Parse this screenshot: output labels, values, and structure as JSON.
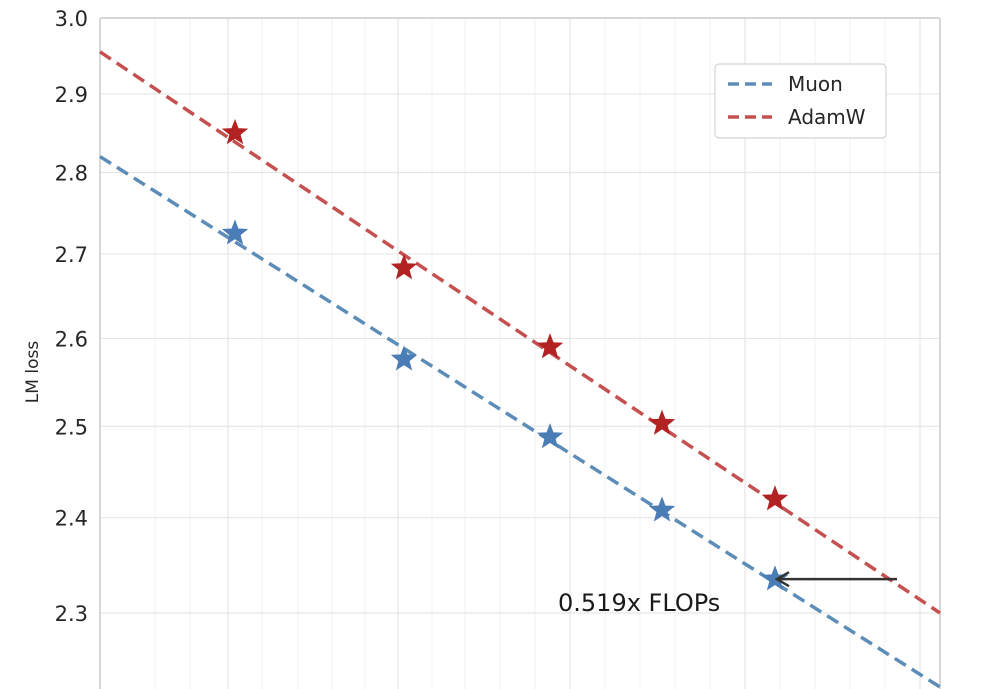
{
  "chart_data": {
    "type": "line",
    "title": "",
    "xlabel": "",
    "ylabel": "LM loss",
    "ylim": [
      2.22,
      3.0
    ],
    "y_scale": "log",
    "yticks": [
      2.3,
      2.4,
      2.5,
      2.6,
      2.7,
      2.8,
      2.9,
      3.0
    ],
    "ytick_labels": [
      "2.3",
      "2.4",
      "2.5",
      "2.6",
      "2.7",
      "2.8",
      "2.9",
      "3.0"
    ],
    "grid": true,
    "legend_position": "top-right",
    "series": [
      {
        "name": "Muon",
        "color": "#4a7db5",
        "fit_color": "#5b8db8",
        "points": [
          2.725,
          2.576,
          2.488,
          2.408,
          2.335
        ],
        "fit_line": {
          "start": 2.82,
          "end": 2.22
        }
      },
      {
        "name": "AdamW",
        "color": "#b22222",
        "fit_color": "#c45050",
        "points": [
          2.85,
          2.683,
          2.59,
          2.503,
          2.42
        ],
        "fit_line": {
          "start": 2.955,
          "end": 2.3
        }
      }
    ],
    "annotation": {
      "text": "0.519x FLOPs",
      "value": 2.335
    }
  }
}
